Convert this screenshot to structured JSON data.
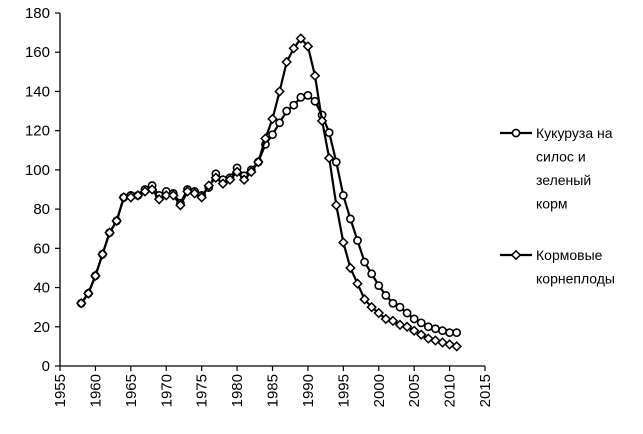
{
  "chart_data": {
    "type": "line",
    "title": "",
    "xlabel": "",
    "ylabel": "",
    "xlim": [
      1955,
      2015
    ],
    "ylim": [
      0,
      180
    ],
    "x_ticks": [
      1955,
      1960,
      1965,
      1970,
      1975,
      1980,
      1985,
      1990,
      1995,
      2000,
      2005,
      2010,
      2015
    ],
    "y_ticks": [
      0,
      20,
      40,
      60,
      80,
      100,
      120,
      140,
      160,
      180
    ],
    "grid": false,
    "legend_position": "right",
    "series": [
      {
        "name": "Кукуруза на силос и зеленый корм",
        "legend_lines": [
          "Кукуруза на",
          "силос и",
          "зеленый",
          "корм"
        ],
        "marker": "circle",
        "color": "#000000",
        "x": [
          1958,
          1959,
          1960,
          1961,
          1962,
          1963,
          1964,
          1965,
          1966,
          1967,
          1968,
          1969,
          1970,
          1971,
          1972,
          1973,
          1974,
          1975,
          1976,
          1977,
          1978,
          1979,
          1980,
          1981,
          1982,
          1983,
          1984,
          1985,
          1986,
          1987,
          1988,
          1989,
          1990,
          1991,
          1992,
          1993,
          1994,
          1995,
          1996,
          1997,
          1998,
          1999,
          2000,
          2001,
          2002,
          2003,
          2004,
          2005,
          2006,
          2007,
          2008,
          2009,
          2010,
          2011
        ],
        "values": [
          32,
          37,
          46,
          57,
          68,
          74,
          86,
          87,
          87,
          90,
          92,
          87,
          89,
          88,
          83,
          90,
          89,
          87,
          91,
          98,
          95,
          96,
          101,
          97,
          100,
          104,
          113,
          118,
          124,
          130,
          133,
          137,
          138,
          135,
          128,
          119,
          104,
          87,
          75,
          64,
          53,
          47,
          41,
          36,
          32,
          30,
          27,
          24,
          22,
          20,
          19,
          18,
          17,
          17
        ]
      },
      {
        "name": "Кормовые корнеплоды",
        "legend_lines": [
          "Кормовые",
          "корнеплоды"
        ],
        "marker": "diamond",
        "color": "#000000",
        "x": [
          1958,
          1959,
          1960,
          1961,
          1962,
          1963,
          1964,
          1965,
          1966,
          1967,
          1968,
          1969,
          1970,
          1971,
          1972,
          1973,
          1974,
          1975,
          1976,
          1977,
          1978,
          1979,
          1980,
          1981,
          1982,
          1983,
          1984,
          1985,
          1986,
          1987,
          1988,
          1989,
          1990,
          1991,
          1992,
          1993,
          1994,
          1995,
          1996,
          1997,
          1998,
          1999,
          2000,
          2001,
          2002,
          2003,
          2004,
          2005,
          2006,
          2007,
          2008,
          2009,
          2010,
          2011
        ],
        "values": [
          32,
          37,
          46,
          57,
          68,
          74,
          86,
          86,
          87,
          89,
          90,
          85,
          87,
          87,
          82,
          89,
          88,
          86,
          92,
          96,
          93,
          95,
          99,
          95,
          99,
          104,
          116,
          126,
          140,
          155,
          162,
          167,
          163,
          148,
          125,
          106,
          82,
          63,
          50,
          42,
          34,
          30,
          27,
          24,
          23,
          21,
          20,
          18,
          16,
          14,
          13,
          12,
          11,
          10
        ]
      }
    ]
  }
}
